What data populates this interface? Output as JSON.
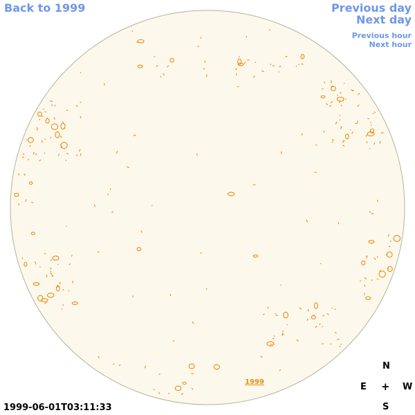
{
  "nav": {
    "back": "Back to 1999",
    "previous_day": "Previous day",
    "next_day": "Next day",
    "previous_hour": "Previous hour",
    "next_hour": "Next hour"
  },
  "disk": {
    "year_label": "1999",
    "colors": {
      "disk_fill": "#fdf8ec",
      "disk_edge": "#b8b0a0",
      "contour": "#ee8a10"
    }
  },
  "compass": {
    "north": "N",
    "east": "E",
    "center": "+",
    "west": "W",
    "south": "S"
  },
  "timestamp": "1999-06-01T03:11:33",
  "colors": {
    "link": "#6f97e8",
    "label": "#000000"
  }
}
